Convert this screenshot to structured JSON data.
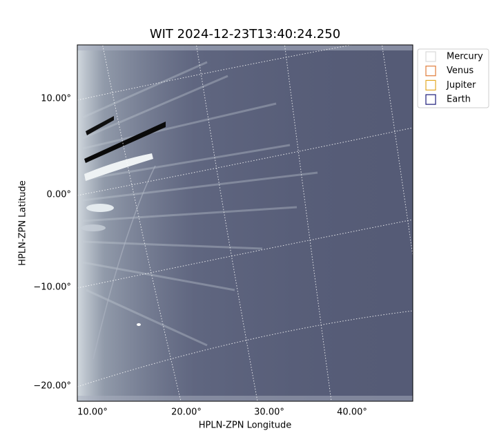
{
  "title": "WIT 2024-12-23T13:40:24.250",
  "x_axis": {
    "label": "HPLN-ZPN Longitude",
    "ticks": [
      "10.00°",
      "20.00°",
      "30.00°",
      "40.00°"
    ]
  },
  "y_axis": {
    "label": "HPLN-ZPN Latitude",
    "ticks": [
      "10.00°",
      "0.00°",
      "−10.00°",
      "−20.00°"
    ]
  },
  "legend": [
    {
      "name": "Mercury",
      "color": "#d9d9d9"
    },
    {
      "name": "Venus",
      "color": "#e07b39"
    },
    {
      "name": "Jupiter",
      "color": "#e3a826"
    },
    {
      "name": "Earth",
      "color": "#1a1a7a"
    }
  ]
}
